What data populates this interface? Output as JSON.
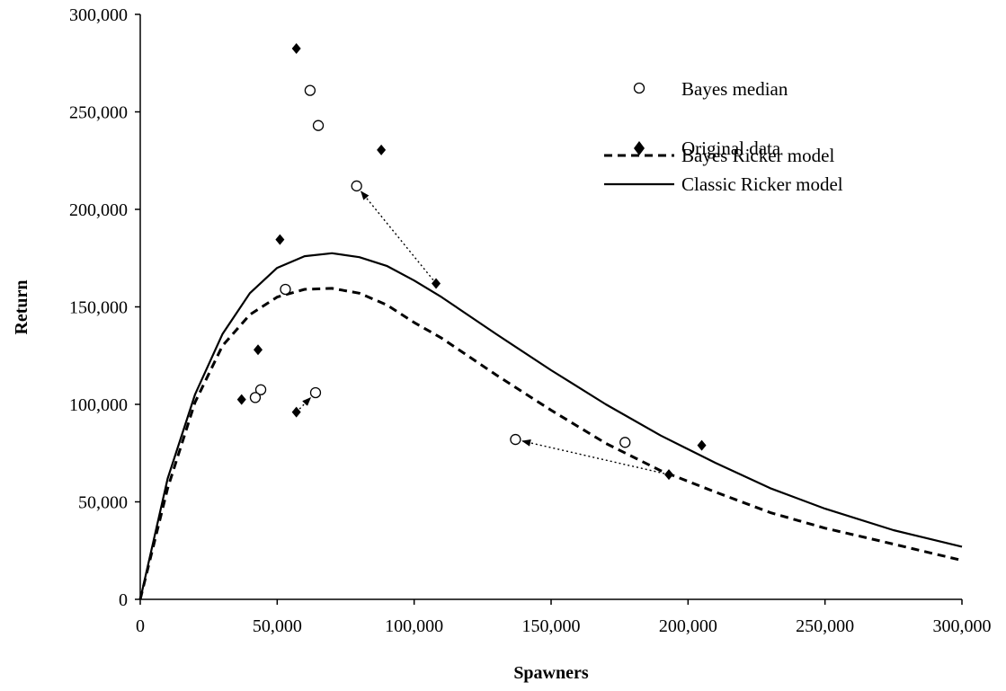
{
  "chart_data": {
    "type": "scatter",
    "xlabel": "Spawners",
    "ylabel": "Return",
    "xlim": [
      0,
      300000
    ],
    "ylim": [
      0,
      300000
    ],
    "x_ticks": [
      0,
      50000,
      100000,
      150000,
      200000,
      250000,
      300000
    ],
    "y_ticks": [
      0,
      50000,
      100000,
      150000,
      200000,
      250000,
      300000
    ],
    "x_tick_labels": [
      "0",
      "50,000",
      "100,000",
      "150,000",
      "200,000",
      "250,000",
      "300,000"
    ],
    "y_tick_labels": [
      "0",
      "50,000",
      "100,000",
      "150,000",
      "200,000",
      "250,000",
      "300,000"
    ],
    "grid": false,
    "legend_position": "top-right",
    "series": [
      {
        "name": "Bayes median",
        "kind": "points",
        "marker": "open-circle",
        "points": [
          [
            62000,
            261000
          ],
          [
            65000,
            243000
          ],
          [
            79000,
            212000
          ],
          [
            53000,
            159000
          ],
          [
            44000,
            107500
          ],
          [
            42000,
            103500
          ],
          [
            64000,
            106000
          ],
          [
            137000,
            82000
          ],
          [
            177000,
            80500
          ]
        ]
      },
      {
        "name": "Original data",
        "kind": "points",
        "marker": "filled-diamond",
        "points": [
          [
            57000,
            282500
          ],
          [
            88000,
            230500
          ],
          [
            51000,
            184500
          ],
          [
            108000,
            162000
          ],
          [
            43000,
            128000
          ],
          [
            37000,
            102500
          ],
          [
            57000,
            96000
          ],
          [
            205000,
            79000
          ],
          [
            193000,
            64000
          ]
        ]
      },
      {
        "name": "Bayes Ricker model",
        "kind": "line",
        "style": "dashed",
        "points": [
          [
            0,
            0
          ],
          [
            10000,
            57000
          ],
          [
            20000,
            101000
          ],
          [
            30000,
            130000
          ],
          [
            40000,
            146000
          ],
          [
            50000,
            155000
          ],
          [
            60000,
            159000
          ],
          [
            70000,
            159500
          ],
          [
            80000,
            157000
          ],
          [
            90000,
            151000
          ],
          [
            100000,
            142000
          ],
          [
            110000,
            134000
          ],
          [
            130000,
            115000
          ],
          [
            150000,
            97000
          ],
          [
            170000,
            80000
          ],
          [
            190000,
            66000
          ],
          [
            210000,
            55000
          ],
          [
            230000,
            44500
          ],
          [
            250000,
            36500
          ],
          [
            270000,
            30000
          ],
          [
            285000,
            25000
          ],
          [
            300000,
            20000
          ]
        ]
      },
      {
        "name": "Classic Ricker model",
        "kind": "line",
        "style": "solid",
        "points": [
          [
            0,
            0
          ],
          [
            10000,
            62000
          ],
          [
            20000,
            105000
          ],
          [
            30000,
            136000
          ],
          [
            40000,
            157000
          ],
          [
            50000,
            170000
          ],
          [
            60000,
            176000
          ],
          [
            70000,
            177500
          ],
          [
            80000,
            175500
          ],
          [
            90000,
            171000
          ],
          [
            100000,
            163500
          ],
          [
            110000,
            155000
          ],
          [
            130000,
            136000
          ],
          [
            150000,
            117500
          ],
          [
            170000,
            100000
          ],
          [
            190000,
            84000
          ],
          [
            210000,
            70000
          ],
          [
            230000,
            57000
          ],
          [
            250000,
            46500
          ],
          [
            275000,
            35500
          ],
          [
            300000,
            27000
          ]
        ]
      }
    ],
    "arrows": [
      {
        "from": [
          108000,
          162000
        ],
        "to": [
          79000,
          212000
        ]
      },
      {
        "from": [
          193000,
          64000
        ],
        "to": [
          137000,
          82000
        ]
      },
      {
        "from": [
          57000,
          96000
        ],
        "to": [
          64000,
          106000
        ]
      }
    ]
  }
}
